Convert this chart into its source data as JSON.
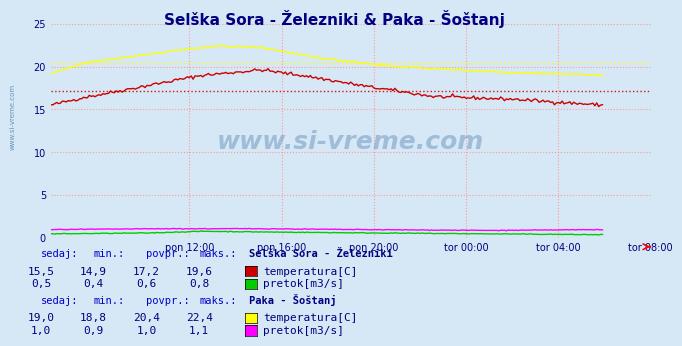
{
  "title": "Selška Sora - Železniki & Paka - Šoštanj",
  "title_color": "#000080",
  "bg_color": "#d6e8f5",
  "plot_bg_color": "#d6e8f5",
  "grid_color": "#ff9999",
  "grid_style": "dotted",
  "xlabel_color": "#000080",
  "ylabel_color": "#000080",
  "watermark": "www.si-vreme.com",
  "x_tick_labels": [
    "pon 12:00",
    "pon 16:00",
    "pon 20:00",
    "tor 00:00",
    "tor 04:00",
    "tor 08:00"
  ],
  "x_tick_positions": [
    72,
    120,
    168,
    216,
    264,
    312
  ],
  "n_points": 288,
  "ylim": [
    0,
    25
  ],
  "yticks": [
    0,
    5,
    10,
    15,
    20,
    25
  ],
  "avg_selska_temp": 17.2,
  "avg_paka_temp": 20.4,
  "selska_temp_color": "#cc0000",
  "selska_pretok_color": "#00cc00",
  "paka_temp_color": "#ffff00",
  "paka_pretok_color": "#ff00ff",
  "avg_selska_color": "#cc0000",
  "avg_paka_color": "#ffff00",
  "table_header_color": "#0000cc",
  "table_value_color": "#000080",
  "table_data": {
    "selska": {
      "station": "Selška Sora - Železniki",
      "sedaj": 15.5,
      "min": 14.9,
      "povpr": 17.2,
      "maks": 19.6,
      "pretok_sedaj": 0.5,
      "pretok_min": 0.4,
      "pretok_povpr": 0.6,
      "pretok_maks": 0.8
    },
    "paka": {
      "station": "Paka - Šoštanj",
      "sedaj": 19.0,
      "min": 18.8,
      "povpr": 20.4,
      "maks": 22.4,
      "pretok_sedaj": 1.0,
      "pretok_min": 0.9,
      "pretok_povpr": 1.0,
      "pretok_maks": 1.1
    }
  }
}
